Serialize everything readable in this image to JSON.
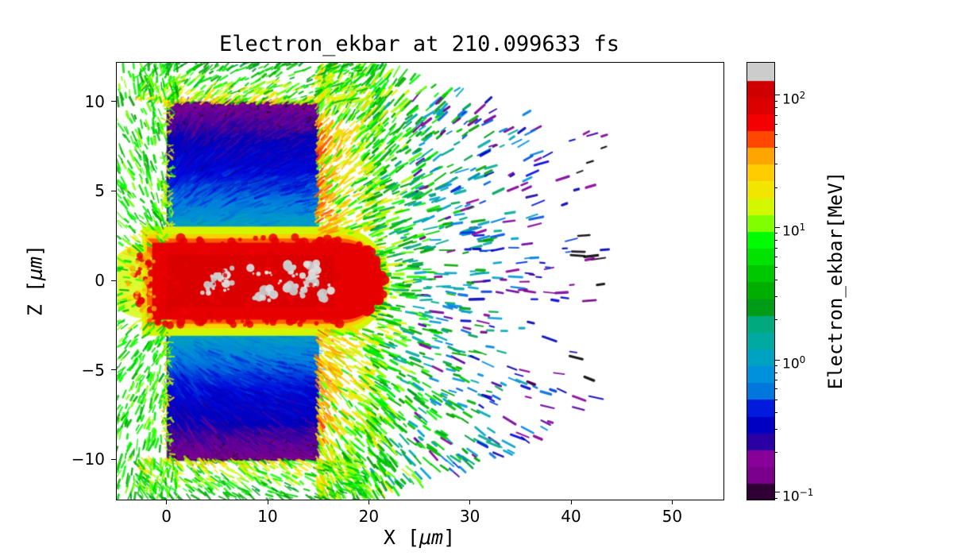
{
  "chart_data": {
    "type": "heatmap",
    "title": "Electron_ekbar at 210.099633 fs",
    "time_fs": 210.099633,
    "xlabel": "X [μm]",
    "xlabel_parts": [
      "X [",
      "μm",
      "]"
    ],
    "ylabel": "Z [μm]",
    "ylabel_parts": [
      "Z [",
      "μm",
      "]"
    ],
    "xlim": [
      -5,
      55
    ],
    "ylim": [
      -12.2,
      12.2
    ],
    "x_tick_values": [
      0,
      10,
      20,
      30,
      40,
      50
    ],
    "x_tick_labels": [
      "0",
      "10",
      "20",
      "30",
      "40",
      "50"
    ],
    "y_tick_values": [
      10,
      5,
      0,
      -5,
      -10
    ],
    "y_tick_labels": [
      "10",
      "5",
      "0",
      "−5",
      "−10"
    ],
    "grid": false,
    "colorbar": {
      "label": "Electron_ekbar[MeV]",
      "scale": "log",
      "colormap": "nipy_spectral",
      "vmin_exp": -1.05,
      "vmax_exp": 2.25,
      "levels": 26,
      "tick_values_MeV": [
        100,
        10,
        1,
        0.1
      ],
      "tick_exponents": [
        2,
        1,
        0,
        -1
      ],
      "tick_labels": [
        {
          "base": "10",
          "exp": "2"
        },
        {
          "base": "10",
          "exp": "1"
        },
        {
          "base": "10",
          "exp": "0"
        },
        {
          "base": "10",
          "exp": "−1"
        }
      ]
    },
    "features": {
      "description": "2D map of electron mean kinetic energy (PIC simulation): cold target slab at x 0-15 um, |z| 2-10 um, with a hot laser-drilled red channel along z=0 containing gray >160 MeV hotspots, a green/yellow halo, and ejected electron streaks out to x ~43 um.",
      "target_block": {
        "x_um": [
          0,
          15
        ],
        "z_um": [
          -10,
          10
        ],
        "profile_E_MeV_vs_abs_z": [
          {
            "z_abs_um": 10,
            "E_MeV": 0.17
          },
          {
            "z_abs_um": 8.5,
            "E_MeV": 0.24
          },
          {
            "z_abs_um": 8.0,
            "E_MeV": 0.31
          },
          {
            "z_abs_um": 6.0,
            "E_MeV": 0.42
          },
          {
            "z_abs_um": 4.5,
            "E_MeV": 0.64
          },
          {
            "z_abs_um": 3.0,
            "E_MeV": 1.05
          },
          {
            "z_abs_um": 2.2,
            "E_MeV": 1.5
          },
          {
            "z_abs_um": 2.0,
            "E_MeV": 1.9
          }
        ]
      },
      "hot_channel": {
        "x_um": [
          -2,
          21
        ],
        "z_um": [
          -2.2,
          2.2
        ],
        "E_core_MeV": 75,
        "E_inner_MeV": 95,
        "E_fringe_MeV": [
          15,
          45
        ],
        "hotspots": {
          "x_um": [
            3.5,
            16
          ],
          "z_um": [
            -0.9,
            0.9
          ],
          "E_MeV": 170
        }
      },
      "halo_E_MeV": [
        3,
        30
      ],
      "ejected_streaks": {
        "x_max_um": 43,
        "E_MeV_near": 10,
        "E_MeV_far": 0.12
      },
      "backward_spray": {
        "x_um": [
          -5,
          0
        ],
        "E_MeV": [
          3,
          28
        ]
      }
    }
  }
}
